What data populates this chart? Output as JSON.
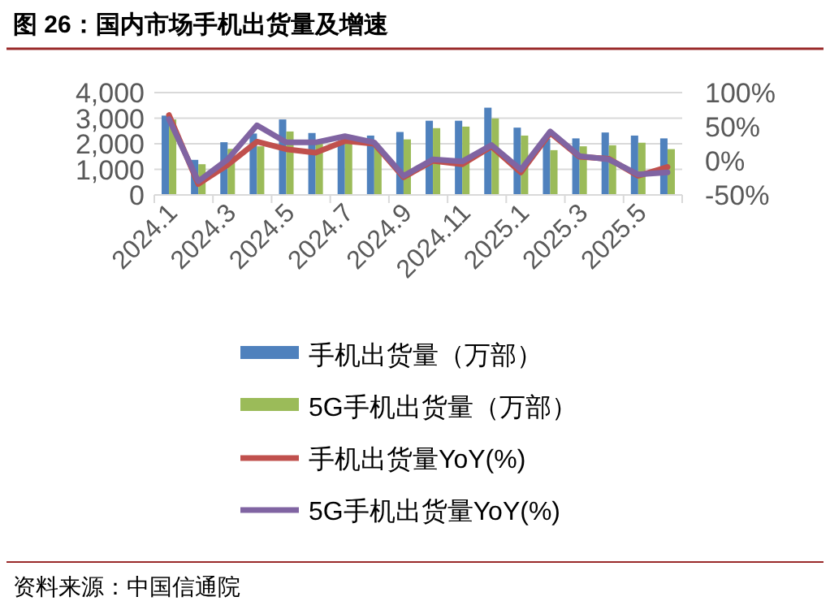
{
  "chart_data": {
    "type": "bar",
    "title": "图 26：国内市场手机出货量及增速",
    "categories": [
      "2024.1",
      null,
      "2024.3",
      null,
      "2024.5",
      null,
      "2024.7",
      null,
      "2024.9",
      null,
      "2024.11",
      null,
      "2025.1",
      null,
      "2025.3",
      null,
      "2025.5",
      null
    ],
    "series": [
      {
        "name": "手机出货量（万部）",
        "color": "#4f81bd",
        "values": [
          3100,
          1370,
          2060,
          2400,
          2950,
          2420,
          2100,
          2320,
          2460,
          2900,
          2900,
          3410,
          2630,
          2200,
          2210,
          2440,
          2320,
          2210
        ]
      },
      {
        "name": "5G手机出货量（万部）",
        "color": "#9bbb59",
        "values": [
          2950,
          1200,
          1800,
          1900,
          2480,
          2100,
          2000,
          1900,
          2170,
          2610,
          2670,
          2990,
          2320,
          1750,
          1900,
          1940,
          2040,
          1790
        ]
      },
      {
        "name": "手机出货量YoY(%)",
        "type": "line",
        "axis": "y2",
        "color": "#c0504d",
        "values": [
          67,
          -34,
          -6,
          28,
          17,
          12,
          29,
          25,
          -24,
          0,
          -5,
          21,
          -17,
          41,
          6,
          3,
          -22,
          -9
        ]
      },
      {
        "name": "5G手机出货量YoY(%)",
        "type": "line",
        "axis": "y2",
        "color": "#8064a2",
        "values": [
          61,
          -30,
          2,
          52,
          27,
          27,
          36,
          27,
          -22,
          2,
          -1,
          23,
          -13,
          43,
          7,
          2,
          -20,
          -17
        ]
      }
    ],
    "ylim": [
      0,
      4000
    ],
    "yticks": [
      {
        "value": 0,
        "label": "0"
      },
      {
        "value": 1000,
        "label": "1,000"
      },
      {
        "value": 2000,
        "label": "2,000"
      },
      {
        "value": 3000,
        "label": "3,000"
      },
      {
        "value": 4000,
        "label": "4,000"
      }
    ],
    "y2lim": [
      -50,
      100
    ],
    "y2ticks": [
      {
        "value": -50,
        "label": "-50%"
      },
      {
        "value": 0,
        "label": "0%"
      },
      {
        "value": 50,
        "label": "50%"
      },
      {
        "value": 100,
        "label": "100%"
      }
    ],
    "grid": "y",
    "legend": "bottom",
    "marker": "none",
    "line_style": "solid",
    "annotations": [
      "资料来源：中国信通院"
    ]
  }
}
